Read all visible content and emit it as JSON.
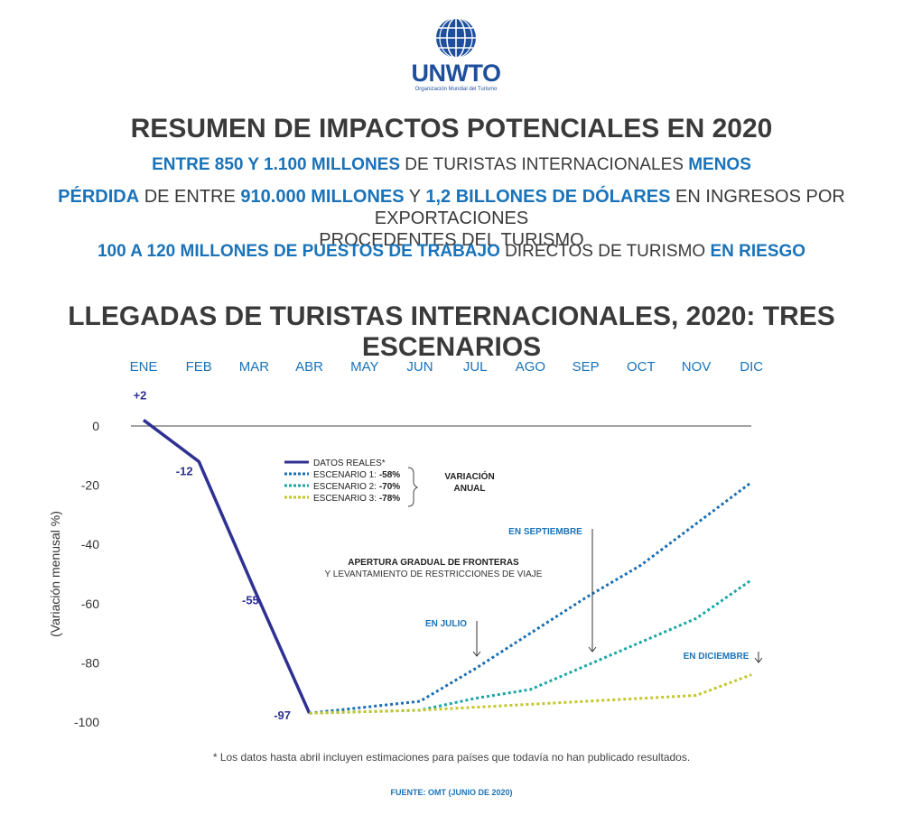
{
  "logo": {
    "name": "UNWTO",
    "subtitle": "Organización Mundial del Turismo",
    "color": "#1e4f9c"
  },
  "header": {
    "title": "RESUMEN DE IMPACTOS POTENCIALES EN 2020",
    "line1": {
      "a": "ENTRE 850 Y 1.100 MILLONES",
      "b": " DE TURISTAS INTERNACIONALES ",
      "c": "MENOS"
    },
    "line2": {
      "a": "PÉRDIDA",
      "b": " DE ENTRE ",
      "c": "910.000 MILLONES",
      "d": " Y ",
      "e": "1,2 BILLONES DE DÓLARES",
      "f": " EN INGRESOS POR EXPORTACIONES",
      "g": "PROCEDENTES DEL TURISMO"
    },
    "line3": {
      "a": "100 A 120 MILLONES DE PUESTOS DE TRABAJO",
      "b": " DIRECTOS DE TURISMO ",
      "c": "EN RIESGO"
    }
  },
  "chart_data": {
    "type": "line",
    "title": "LLEGADAS DE TURISTAS INTERNACIONALES, 2020: TRES ESCENARIOS",
    "ylabel": "(Variación menusal %)",
    "categories": [
      "ENE",
      "FEB",
      "MAR",
      "ABR",
      "MAY",
      "JUN",
      "JUL",
      "AGO",
      "SEP",
      "OCT",
      "NOV",
      "DIC"
    ],
    "ylim": [
      -100,
      0
    ],
    "yticks": [
      0,
      -20,
      -40,
      -60,
      -80,
      -100
    ],
    "series": [
      {
        "name": "DATOS REALES*",
        "color": "#2e3192",
        "dashed": false,
        "values": [
          2,
          -12,
          -55,
          -97,
          null,
          null,
          null,
          null,
          null,
          null,
          null,
          null
        ],
        "labels": [
          "+2",
          "-12",
          "-55",
          "-97"
        ]
      },
      {
        "name": "ESCENARIO 1: -58%",
        "color": "#1a6fb5",
        "dashed": true,
        "values": [
          null,
          null,
          null,
          -97,
          -95,
          -93,
          -82,
          -70,
          -58,
          -47,
          -33,
          -19
        ]
      },
      {
        "name": "ESCENARIO 2: -70%",
        "color": "#1aa6a6",
        "dashed": true,
        "values": [
          null,
          null,
          null,
          -97,
          -96.5,
          -96,
          -92,
          -89,
          -81,
          -73,
          -65,
          -52
        ]
      },
      {
        "name": "ESCENARIO 3: -78%",
        "color": "#c4c62a",
        "dashed": true,
        "values": [
          null,
          null,
          null,
          -97,
          -96.5,
          -96,
          -95,
          -94,
          -93,
          -92,
          -91,
          -84
        ]
      }
    ],
    "legend": {
      "items": [
        {
          "prefix": "DATOS REALES*",
          "bold": ""
        },
        {
          "prefix": "ESCENARIO 1: ",
          "bold": "-58%"
        },
        {
          "prefix": "ESCENARIO 2: ",
          "bold": "-70%"
        },
        {
          "prefix": "ESCENARIO 3: ",
          "bold": "-78%"
        }
      ],
      "brace_label": [
        "VARIACIÓN",
        "ANUAL"
      ]
    },
    "annotations": {
      "reopen_title": "APERTURA GRADUAL DE FRONTERAS",
      "reopen_sub": "Y LEVANTAMIENTO DE RESTRICCIONES DE VIAJE",
      "july": "EN JULIO",
      "september": "EN SEPTIEMBRE",
      "december": "EN DICIEMBRE"
    }
  },
  "footer": {
    "note": "* Los datos hasta abril incluyen estimaciones para países que todavía no han publicado resultados.",
    "source": "FUENTE: OMT (JUNIO DE 2020)"
  }
}
